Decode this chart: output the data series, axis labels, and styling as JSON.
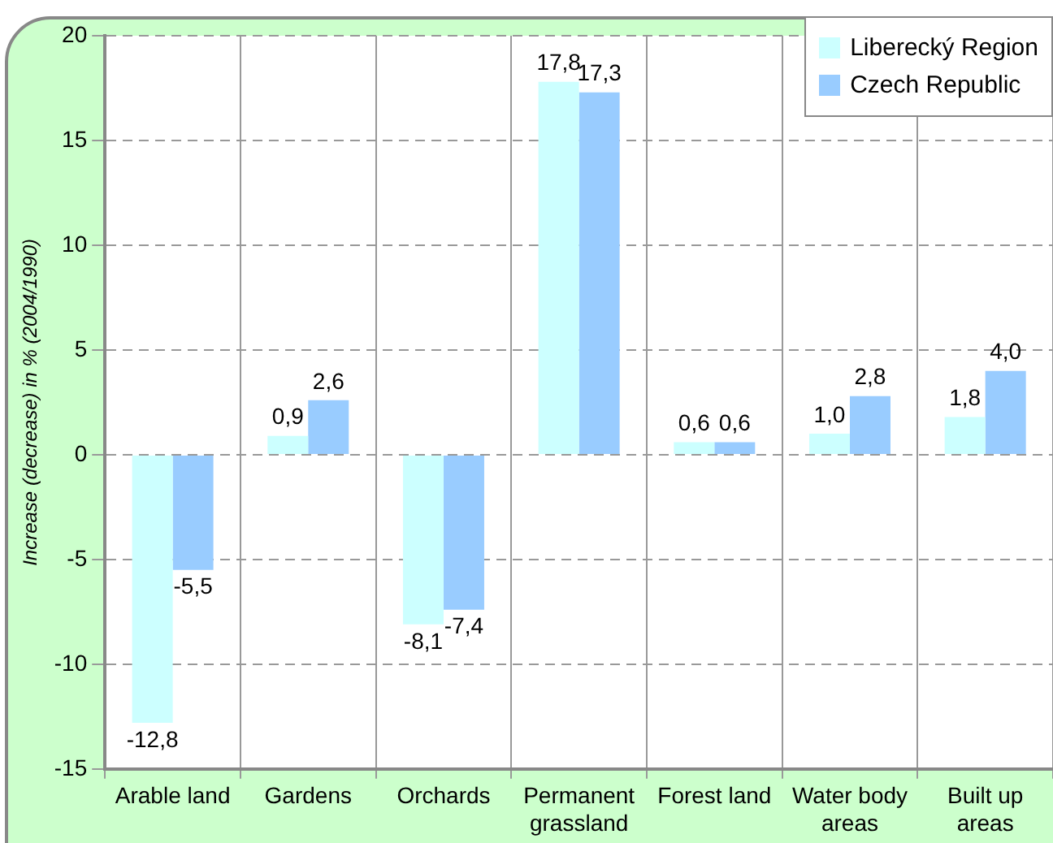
{
  "chart_data": {
    "type": "bar",
    "ylabel": "Increase (decrease) in % (2004/1990)",
    "categories": [
      "Arable land",
      "Gardens",
      "Orchards",
      "Permanent grassland",
      "Forest land",
      "Water body areas",
      "Built up areas"
    ],
    "series": [
      {
        "name": "Liberecký Region",
        "color": "#ccffff",
        "values": [
          -12.8,
          0.9,
          -8.1,
          17.8,
          0.6,
          1.0,
          1.8
        ],
        "value_labels": [
          "-12,8",
          "0,9",
          "-8,1",
          "17,8",
          "0,6",
          "1,0",
          "1,8"
        ]
      },
      {
        "name": "Czech Republic",
        "color": "#99ccff",
        "values": [
          -5.5,
          2.6,
          -7.4,
          17.3,
          0.6,
          2.8,
          4.0
        ],
        "value_labels": [
          "-5,5",
          "2,6",
          "-7,4",
          "17,3",
          "0,6",
          "2,8",
          "4,0"
        ]
      }
    ],
    "ylim": [
      -15,
      20
    ],
    "yticks": [
      -15,
      -10,
      -5,
      0,
      5,
      10,
      15,
      20
    ],
    "grid": true,
    "legend": "top right"
  }
}
